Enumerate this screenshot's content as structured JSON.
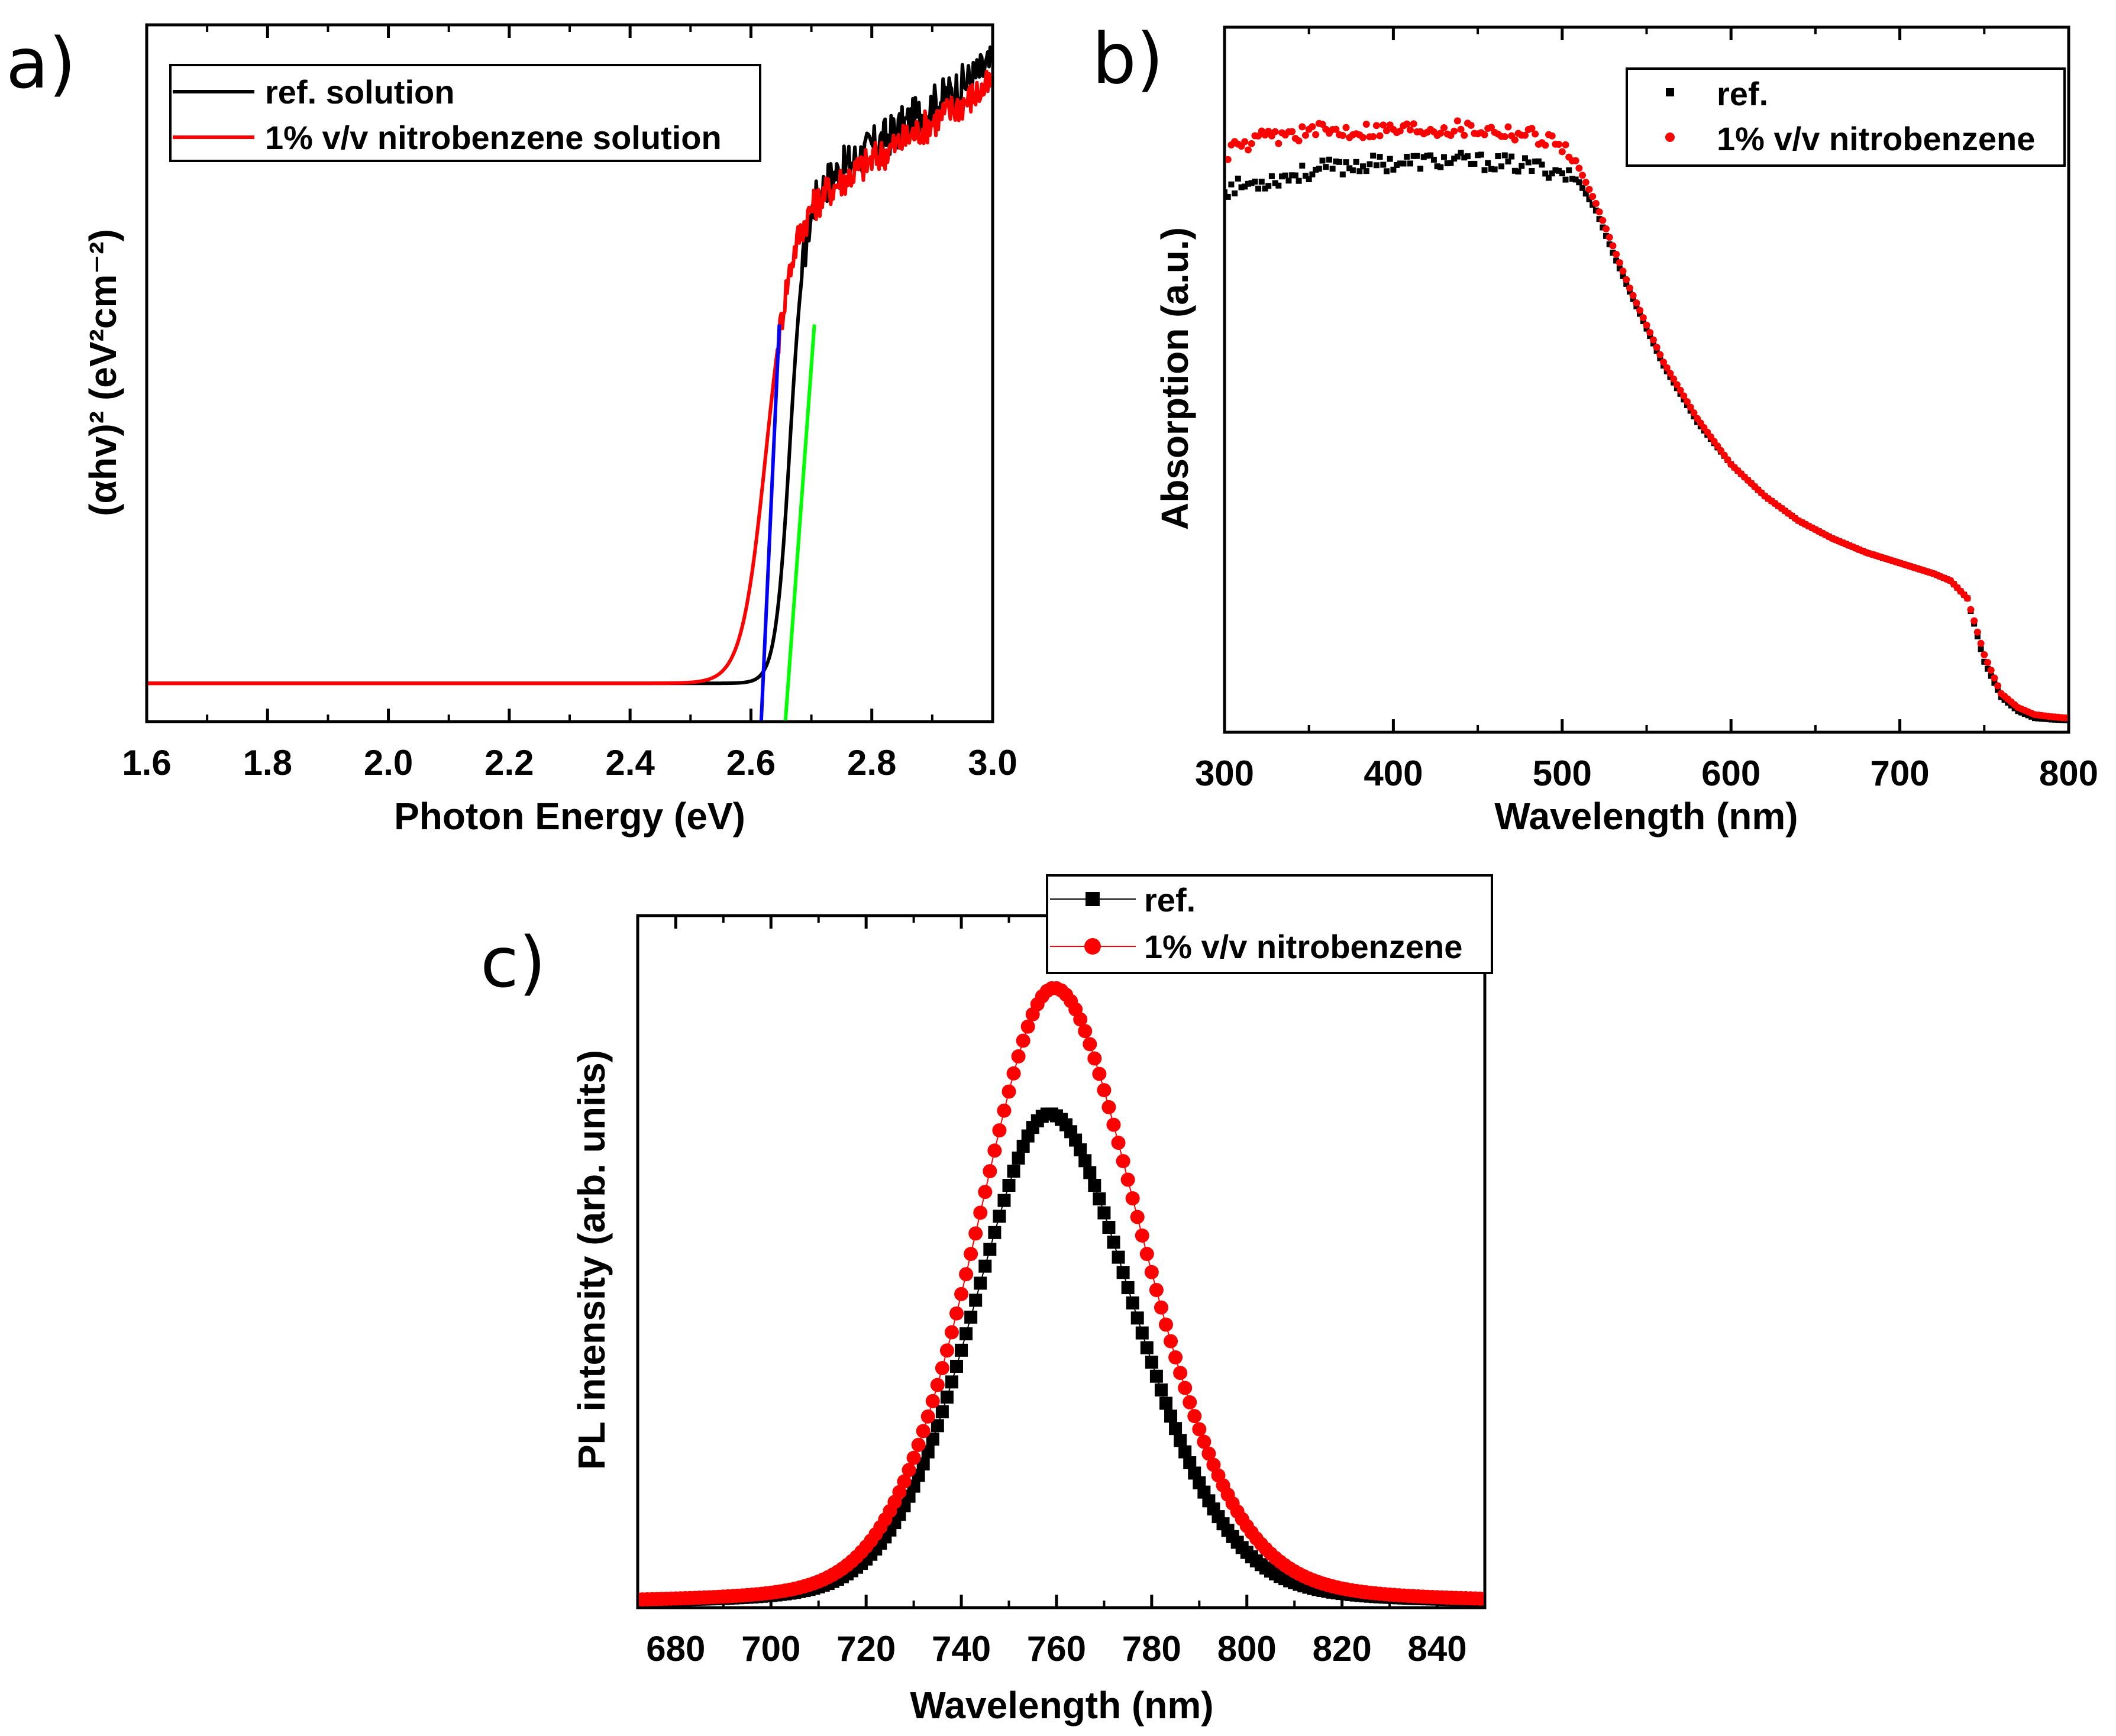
{
  "chart_data": [
    {
      "panel": "a)",
      "type": "line",
      "xlabel": "Photon Energy (eV)",
      "ylabel": "(αhv)² (eV²cm⁻²)",
      "xlim": [
        1.6,
        3.0
      ],
      "ylim": [
        0,
        100
      ],
      "xticks": [
        "1.6",
        "1.8",
        "2.0",
        "2.2",
        "2.4",
        "2.6",
        "2.8",
        "3.0"
      ],
      "yticks_shown": false,
      "legend_position": "top-left",
      "series": [
        {
          "name": "ref. solution",
          "color": "#000000",
          "baseline": 5.5,
          "edge": 2.665,
          "width": 0.012,
          "plateau": 75.5,
          "slope": 60,
          "noise": 3
        },
        {
          "name": "1% v/v nitrobenzene solution",
          "color": "#ff0000",
          "baseline": 5.5,
          "edge": 2.625,
          "width": 0.02,
          "plateau": 72,
          "slope": 55,
          "noise": 2.5
        }
      ],
      "tangent_lines": [
        {
          "color": "#0000ff",
          "x": [
            2.617,
            2.647
          ],
          "y": [
            0,
            57
          ]
        },
        {
          "color": "#00ff00",
          "x": [
            2.657,
            2.705
          ],
          "y": [
            0,
            57
          ]
        }
      ]
    },
    {
      "panel": "b)",
      "type": "scatter",
      "xlabel": "Wavelength (nm)",
      "ylabel": "Absorption (a.u.)",
      "xlim": [
        300,
        800
      ],
      "ylim": [
        0,
        100
      ],
      "xticks": [
        "300",
        "400",
        "500",
        "600",
        "700",
        "800"
      ],
      "yticks_shown": false,
      "legend_position": "top-right",
      "series": [
        {
          "name": "ref.",
          "color": "#000000",
          "marker": "square",
          "x": [
            300,
            320,
            340,
            360,
            380,
            400,
            420,
            440,
            460,
            480,
            500,
            510,
            520,
            530,
            540,
            560,
            580,
            600,
            620,
            640,
            660,
            680,
            700,
            720,
            730,
            740,
            750,
            760,
            770,
            780,
            790,
            800
          ],
          "y": [
            77,
            78,
            79,
            80,
            80.5,
            80.8,
            81,
            81,
            80.8,
            80.3,
            79.5,
            78,
            74,
            68,
            62.5,
            52,
            44,
            38,
            33.5,
            30,
            27.5,
            25.5,
            24,
            22.5,
            21.5,
            19,
            10,
            5,
            3,
            2,
            1.8,
            1.7
          ]
        },
        {
          "name": "1% v/v nitrobenzene",
          "color": "#ff0000",
          "marker": "circle",
          "x": [
            300,
            320,
            340,
            360,
            380,
            400,
            420,
            440,
            460,
            480,
            500,
            510,
            520,
            530,
            540,
            560,
            580,
            600,
            620,
            640,
            660,
            680,
            700,
            720,
            730,
            740,
            750,
            760,
            770,
            780,
            790,
            800
          ],
          "y": [
            82,
            84,
            85,
            85.3,
            85.5,
            85.6,
            85.8,
            85.8,
            85.5,
            85,
            83.5,
            80,
            75,
            69,
            63,
            52.5,
            44.5,
            38,
            33.5,
            30,
            27.5,
            25.5,
            24,
            22.5,
            21.5,
            19,
            11,
            5.5,
            3.5,
            2.5,
            2.2,
            2
          ]
        }
      ]
    },
    {
      "panel": "c)",
      "type": "line",
      "xlabel": "Wavelength (nm)",
      "ylabel": "PL intensity (arb. units)",
      "xlim": [
        672,
        850
      ],
      "ylim": [
        0,
        110
      ],
      "xticks": [
        "680",
        "700",
        "720",
        "740",
        "760",
        "780",
        "800",
        "820",
        "840"
      ],
      "yticks_shown": false,
      "legend_position": "top-right",
      "series": [
        {
          "name": "ref.",
          "color": "#000000",
          "marker": "square",
          "peak_x": 758.5,
          "peak_y": 78,
          "sigma_left": 17,
          "sigma_right": 19,
          "baseline": 0.5
        },
        {
          "name": "1% v/v nitrobenzene",
          "color": "#ff0000",
          "marker": "circle",
          "peak_x": 759.5,
          "peak_y": 98,
          "sigma_left": 17.5,
          "sigma_right": 19.5,
          "baseline": 0.5
        }
      ]
    }
  ]
}
